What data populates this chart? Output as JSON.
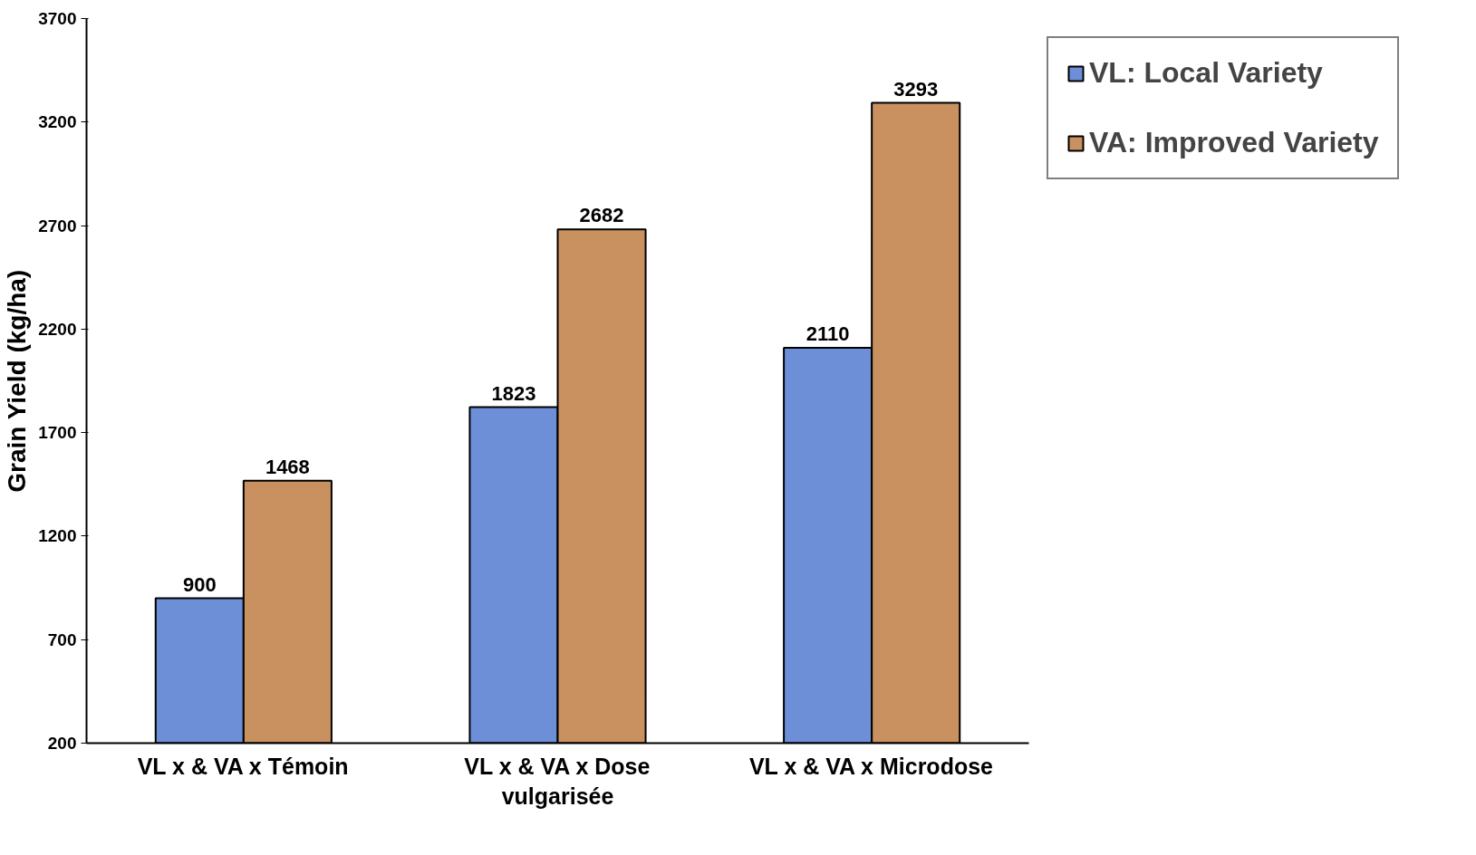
{
  "chart_data": {
    "type": "bar",
    "ylabel": "Grain Yield (kg/ha)",
    "categories": [
      "VL x & VA x Témoin",
      "VL x & VA x Dose vulgarisée",
      "VL x & VA x Microdose"
    ],
    "series": [
      {
        "name": "VL: Local Variety",
        "color": "#6d8fd8",
        "values": [
          900,
          1823,
          2110
        ]
      },
      {
        "name": "VA: Improved Variety",
        "color": "#c99160",
        "values": [
          1468,
          2682,
          3293
        ]
      }
    ],
    "ylim": [
      200,
      3700
    ],
    "yticks": [
      200,
      700,
      1200,
      1700,
      2200,
      2700,
      3200,
      3700
    ],
    "data_labels": true,
    "grid": false,
    "legend": "right"
  }
}
